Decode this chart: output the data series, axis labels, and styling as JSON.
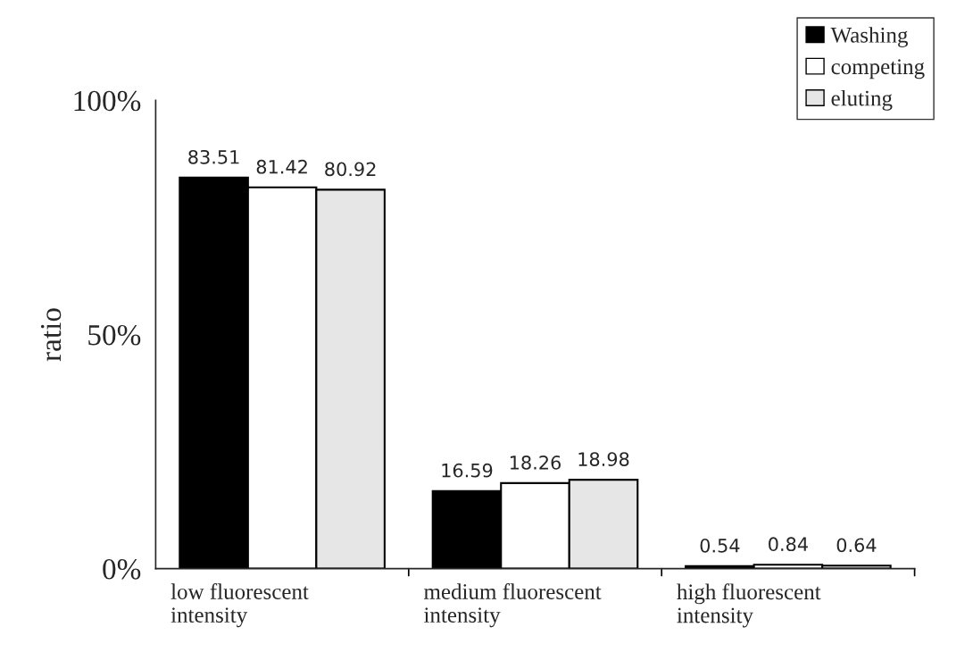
{
  "chart_data": {
    "type": "bar",
    "ylabel": "ratio",
    "categories": [
      "low fluorescent\nintensity",
      "medium fluorescent\nintensity",
      "high fluorescent\nintensity"
    ],
    "series": [
      {
        "name": "Washing",
        "color": "#000000",
        "values": [
          83.51,
          16.59,
          0.54
        ]
      },
      {
        "name": "competing",
        "color": "#ffffff",
        "values": [
          81.42,
          18.26,
          0.84
        ]
      },
      {
        "name": "eluting",
        "color": "#e6e6e6",
        "values": [
          80.92,
          18.98,
          0.64
        ]
      }
    ],
    "ylim": [
      0,
      100
    ],
    "yticks": [
      {
        "value": 0,
        "label": "0%"
      },
      {
        "value": 50,
        "label": "50%"
      },
      {
        "value": 100,
        "label": "100%"
      }
    ],
    "data_labels": true,
    "legend": "top right",
    "grid": false
  }
}
